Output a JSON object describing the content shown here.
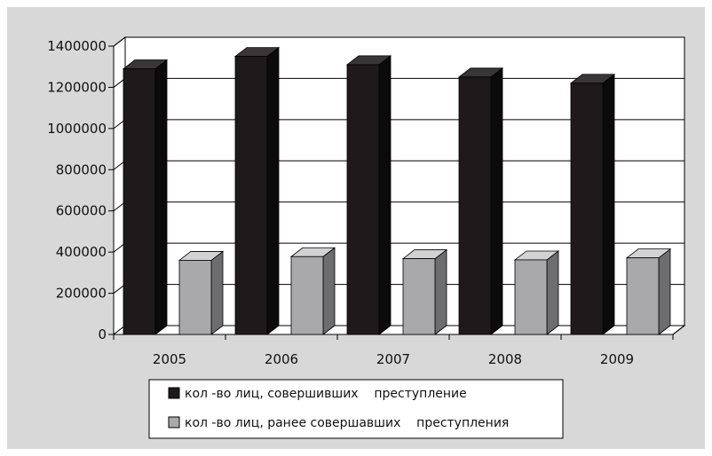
{
  "colors": {
    "panel_background": "#d8d8d8",
    "plot_background": "#ffffff",
    "gridline": "#000000",
    "series_1_front": "#1e1a1b",
    "series_1_top": "#3a3536",
    "series_1_side": "#0c0a0a",
    "series_2_front": "#a9a9ab",
    "series_2_top": "#d2d2d4",
    "series_2_side": "#6d6d6f"
  },
  "chart_data": {
    "type": "bar",
    "variant": "3d-clustered-column",
    "categories": [
      "2005",
      "2006",
      "2007",
      "2008",
      "2009"
    ],
    "series": [
      {
        "name": "кол -во лиц, совершивших    преступление",
        "values": [
          1290000,
          1350000,
          1310000,
          1250000,
          1220000
        ]
      },
      {
        "name": "кол -во лиц, ранее совершавших    преступления",
        "values": [
          360000,
          378000,
          368000,
          362000,
          372000
        ]
      }
    ],
    "ylim": [
      0,
      1400000
    ],
    "yticks": [
      "0",
      "200000",
      "400000",
      "600000",
      "800000",
      "1000000",
      "1200000",
      "1400000"
    ],
    "grid": true,
    "legend_position": "bottom"
  }
}
